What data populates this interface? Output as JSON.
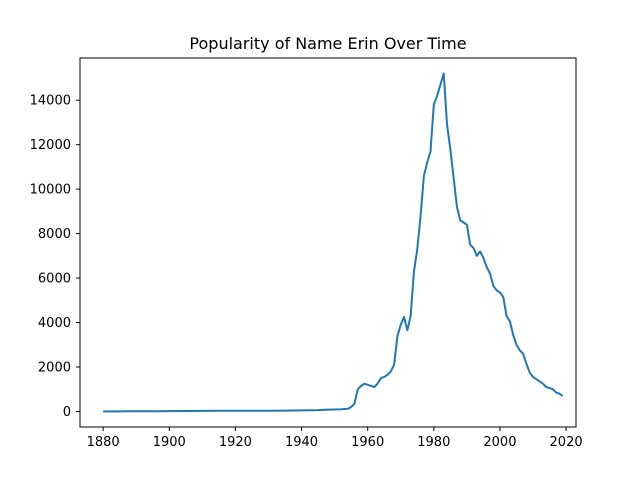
{
  "chart_data": {
    "type": "line",
    "title": "Popularity of Name Erin Over Time",
    "xlabel": "",
    "ylabel": "",
    "xlim": [
      1873,
      2023
    ],
    "ylim": [
      -700,
      15900
    ],
    "xticks": [
      1880,
      1900,
      1920,
      1940,
      1960,
      1980,
      2000,
      2020
    ],
    "yticks": [
      0,
      2000,
      4000,
      6000,
      8000,
      10000,
      12000,
      14000
    ],
    "grid": false,
    "legend": "none",
    "series": [
      {
        "color": "#1f77b4",
        "x": [
          1880,
          1885,
          1890,
          1895,
          1900,
          1905,
          1910,
          1915,
          1920,
          1925,
          1930,
          1935,
          1940,
          1945,
          1948,
          1950,
          1952,
          1954,
          1955,
          1956,
          1957,
          1958,
          1959,
          1960,
          1962,
          1963,
          1964,
          1965,
          1966,
          1967,
          1968,
          1969,
          1970,
          1971,
          1972,
          1973,
          1974,
          1975,
          1976,
          1977,
          1978,
          1979,
          1980,
          1981,
          1982,
          1983,
          1984,
          1985,
          1986,
          1987,
          1988,
          1989,
          1990,
          1991,
          1992,
          1993,
          1994,
          1995,
          1996,
          1997,
          1998,
          1999,
          2000,
          2001,
          2002,
          2003,
          2004,
          2005,
          2006,
          2007,
          2008,
          2009,
          2010,
          2011,
          2012,
          2013,
          2014,
          2015,
          2016,
          2017,
          2018,
          2019
        ],
        "y": [
          0,
          5,
          10,
          10,
          15,
          20,
          25,
          30,
          30,
          30,
          30,
          35,
          50,
          60,
          80,
          90,
          100,
          120,
          200,
          350,
          1000,
          1150,
          1250,
          1200,
          1100,
          1250,
          1500,
          1550,
          1650,
          1800,
          2100,
          3400,
          3900,
          4250,
          3650,
          4300,
          6300,
          7300,
          8800,
          10600,
          11200,
          11700,
          13800,
          14200,
          14700,
          15200,
          12900,
          11800,
          10500,
          9200,
          8600,
          8500,
          8400,
          7500,
          7350,
          7000,
          7200,
          6900,
          6500,
          6200,
          5650,
          5450,
          5350,
          5150,
          4300,
          4050,
          3450,
          3000,
          2750,
          2600,
          2150,
          1750,
          1550,
          1450,
          1350,
          1250,
          1100,
          1050,
          1000,
          850,
          800,
          700
        ]
      }
    ]
  }
}
